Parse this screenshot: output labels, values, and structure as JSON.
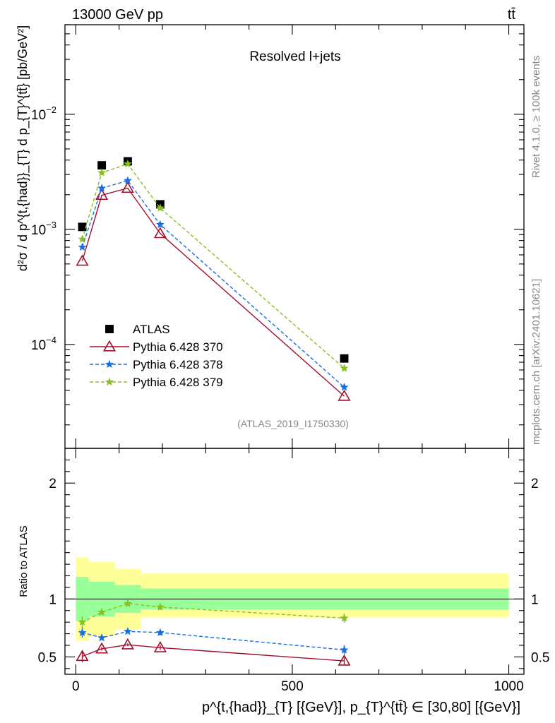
{
  "chart_data": {
    "type": "line",
    "header": {
      "left": "13000 GeV pp",
      "right": "tt̄"
    },
    "title": "Resolved l+jets",
    "analysis_tag": "(ATLAS_2019_I1750330)",
    "side_text": {
      "rivet": "Rivet 4.1.0, ≥ 100k events",
      "mcplots": "mcplots.cern.ch [arXiv:2401.10621]"
    },
    "main_plot": {
      "ylabel": "d²σ / d p^{t,{had}}_{T} d p_{T}^{tt̄} [pb/GeV²]",
      "yscale": "log",
      "ylim": [
        1.25e-05,
        0.06
      ],
      "yticks": [
        {
          "value": 0.0001,
          "mantissa": "10",
          "exponent": "−4"
        },
        {
          "value": 0.001,
          "mantissa": "10",
          "exponent": "−3"
        },
        {
          "value": 0.01,
          "mantissa": "10",
          "exponent": "−2"
        }
      ]
    },
    "ratio_plot": {
      "ylabel": "Ratio to ATLAS",
      "ylim": [
        0.35,
        2.3
      ],
      "yticks": [
        0.5,
        1,
        2
      ],
      "ytick_labels": [
        "0.5",
        "1",
        "2"
      ],
      "bands": [
        {
          "xmin": 0,
          "xmax": 30,
          "green": [
            0.81,
            1.19
          ],
          "yellow": [
            0.64,
            1.36
          ]
        },
        {
          "xmin": 30,
          "xmax": 90,
          "green": [
            0.85,
            1.15
          ],
          "yellow": [
            0.68,
            1.32
          ]
        },
        {
          "xmin": 90,
          "xmax": 150,
          "green": [
            0.88,
            1.12
          ],
          "yellow": [
            0.74,
            1.26
          ]
        },
        {
          "xmin": 150,
          "xmax": 1000,
          "green": [
            0.91,
            1.09
          ],
          "yellow": [
            0.84,
            1.22
          ]
        }
      ]
    },
    "xlabel": "p^{t,{had}}_{T} [{GeV}], p_{T}^{tt̄} ∈ [30,80] [{GeV}]",
    "xlim": [
      -25,
      1035
    ],
    "xticks": [
      0,
      500,
      1000
    ],
    "xtick_labels": [
      "0",
      "500",
      "1000"
    ],
    "series": [
      {
        "name": "ATLAS",
        "color": "#000000",
        "marker": "square",
        "style": "none",
        "x": [
          15,
          60,
          120,
          195,
          620
        ],
        "y": [
          0.00105,
          0.0036,
          0.0039,
          0.00165,
          7.55e-05
        ]
      },
      {
        "name": "Pythia 6.428 370",
        "color": "#a0102c",
        "marker": "triangle",
        "style": "solid",
        "x": [
          15,
          60,
          120,
          195,
          620
        ],
        "y": [
          0.00053,
          0.00198,
          0.00228,
          0.00092,
          3.55e-05
        ],
        "ratio": [
          0.505,
          0.57,
          0.605,
          0.58,
          0.465
        ],
        "ratio_err": [
          0.05,
          0.015,
          0.012,
          0.02,
          0.03
        ]
      },
      {
        "name": "Pythia 6.428 378",
        "color": "#1a6fe0",
        "marker": "star",
        "style": "dashed",
        "x": [
          15,
          60,
          120,
          195,
          620
        ],
        "y": [
          0.0007,
          0.00228,
          0.00265,
          0.0011,
          4.25e-05
        ],
        "ratio": [
          0.71,
          0.665,
          0.72,
          0.71,
          0.56
        ],
        "ratio_err": [
          0.045,
          0.02,
          0.015,
          0.025,
          0.04
        ]
      },
      {
        "name": "Pythia 6.428 379",
        "color": "#88c020",
        "marker": "star",
        "style": "dashed",
        "x": [
          15,
          60,
          120,
          195,
          620
        ],
        "y": [
          0.00082,
          0.0031,
          0.0037,
          0.00153,
          6.2e-05
        ],
        "ratio": [
          0.8,
          0.885,
          0.96,
          0.93,
          0.835
        ],
        "ratio_err": [
          0.05,
          0.02,
          0.015,
          0.025,
          0.04
        ]
      }
    ]
  }
}
